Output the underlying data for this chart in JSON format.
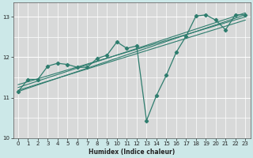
{
  "bg_color": "#cce8e8",
  "grid_color_v": "#e8c8c8",
  "grid_color_h": "#ffffff",
  "line_color": "#2e7d6e",
  "xlabel": "Humidex (Indice chaleur)",
  "xlim": [
    -0.5,
    23.5
  ],
  "ylim": [
    10,
    13.35
  ],
  "yticks": [
    10,
    11,
    12,
    13
  ],
  "xticks": [
    0,
    1,
    2,
    3,
    4,
    5,
    6,
    7,
    8,
    9,
    10,
    11,
    12,
    13,
    14,
    15,
    16,
    17,
    18,
    19,
    20,
    21,
    22,
    23
  ],
  "wiggly_x": [
    0,
    1,
    2,
    3,
    4,
    5,
    6,
    7,
    8,
    9,
    10,
    11,
    12,
    13,
    14,
    15,
    16,
    17,
    18,
    19,
    20,
    21,
    22,
    23
  ],
  "wiggly_y": [
    11.15,
    11.45,
    11.45,
    11.78,
    11.85,
    11.82,
    11.75,
    11.75,
    11.97,
    12.05,
    12.38,
    12.22,
    12.28,
    10.43,
    11.05,
    11.55,
    12.12,
    12.52,
    13.02,
    13.05,
    12.92,
    12.68,
    13.05,
    13.05
  ],
  "straight_lines": [
    {
      "x0": 0,
      "y0": 11.15,
      "x1": 23,
      "y1": 13.05
    },
    {
      "x0": 0,
      "y0": 11.25,
      "x1": 23,
      "y1": 13.1
    },
    {
      "x0": 0,
      "y0": 11.32,
      "x1": 23,
      "y1": 13.0
    },
    {
      "x0": 0,
      "y0": 11.18,
      "x1": 23,
      "y1": 12.92
    }
  ]
}
